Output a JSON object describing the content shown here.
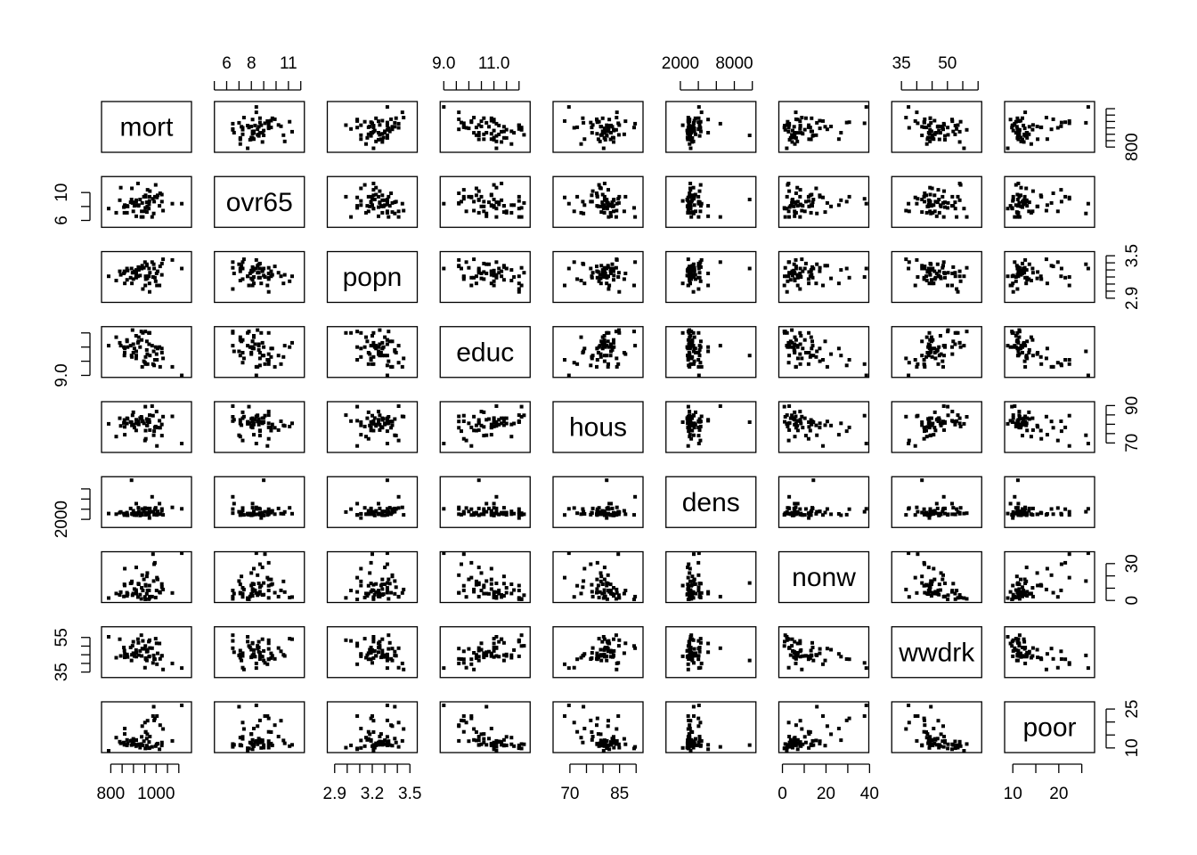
{
  "chart_data": {
    "type": "scatter",
    "matrix": "pairs",
    "variables": [
      "mort",
      "ovr65",
      "popn",
      "educ",
      "hous",
      "dens",
      "nonw",
      "wwdrk",
      "poor"
    ],
    "axes": {
      "mort": {
        "range": [
          775,
          1140
        ],
        "ticks": [
          800,
          1000
        ],
        "minor": [
          800,
          850,
          900,
          950,
          1000,
          1050,
          1100
        ],
        "side": "bottom",
        "labels": [
          "800",
          "1000"
        ]
      },
      "ovr65": {
        "range": [
          5.3,
          12.0
        ],
        "ticks": [
          6,
          8,
          11
        ],
        "minor": [
          5,
          6,
          7,
          8,
          9,
          10,
          11,
          12
        ],
        "side": "top",
        "labels": [
          "6",
          "8",
          "11"
        ]
      },
      "popn": {
        "range": [
          2.87,
          3.53
        ],
        "ticks": [
          2.9,
          3.2,
          3.5
        ],
        "minor": [
          2.9,
          3.0,
          3.1,
          3.2,
          3.3,
          3.4,
          3.5
        ],
        "side": "bottom",
        "labels": [
          "2.9",
          "3.2",
          "3.5"
        ]
      },
      "educ": {
        "range": [
          9.0,
          12.3
        ],
        "ticks": [
          9.0,
          11.0
        ],
        "minor": [
          9.0,
          9.5,
          10.0,
          10.5,
          11.0,
          11.5,
          12.0
        ],
        "side": "top",
        "labels": [
          "9.0",
          "11.0"
        ]
      },
      "hous": {
        "range": [
          66,
          91
        ],
        "ticks": [
          70,
          85
        ],
        "minor": [
          70,
          75,
          80,
          85,
          90
        ],
        "side": "bottom",
        "labels": [
          "70",
          "85"
        ]
      },
      "dens": {
        "range": [
          800,
          10000
        ],
        "ticks": [
          2000,
          8000
        ],
        "minor": [
          2000,
          4000,
          6000,
          8000,
          10000
        ],
        "side": "top",
        "labels": [
          "2000",
          "8000"
        ]
      },
      "nonw": {
        "range": [
          0,
          38
        ],
        "ticks": [
          0,
          20,
          40
        ],
        "minor": [
          0,
          10,
          20,
          30,
          40
        ],
        "side": "bottom",
        "labels": [
          "0",
          "20",
          "40"
        ]
      },
      "wwdrk": {
        "range": [
          33,
          60
        ],
        "ticks": [
          35,
          50
        ],
        "minor": [
          35,
          40,
          45,
          50,
          55,
          60
        ],
        "side": "top",
        "labels": [
          "35",
          "50"
        ]
      },
      "poor": {
        "range": [
          9,
          27
        ],
        "ticks": [
          10,
          20
        ],
        "minor": [
          10,
          15,
          20,
          25
        ],
        "side": "bottom",
        "labels": [
          "10",
          "20"
        ]
      }
    },
    "y_axes": {
      "mort": {
        "ticks": [
          800
        ],
        "minor": [
          800,
          850,
          900,
          950,
          1000,
          1050,
          1100
        ],
        "side": "right",
        "labels": [
          "800"
        ]
      },
      "ovr65": {
        "ticks": [
          6,
          10
        ],
        "minor": [
          6,
          8,
          10
        ],
        "side": "left",
        "labels": [
          "6",
          "10"
        ]
      },
      "popn": {
        "ticks": [
          2.9,
          3.5
        ],
        "minor": [
          2.9,
          3.0,
          3.1,
          3.2,
          3.3,
          3.4,
          3.5
        ],
        "side": "right",
        "labels": [
          "2.9",
          "3.5"
        ]
      },
      "educ": {
        "ticks": [
          9.0
        ],
        "minor": [
          9.0,
          10.0,
          11.0,
          12.0
        ],
        "side": "left",
        "labels": [
          "9.0"
        ]
      },
      "hous": {
        "ticks": [
          70,
          90
        ],
        "minor": [
          70,
          75,
          80,
          85,
          90
        ],
        "side": "right",
        "labels": [
          "70",
          "90"
        ]
      },
      "dens": {
        "ticks": [
          2000
        ],
        "minor": [
          2000,
          4000,
          6000,
          8000
        ],
        "side": "left",
        "labels": [
          "2000"
        ]
      },
      "nonw": {
        "ticks": [
          0,
          30
        ],
        "minor": [
          0,
          10,
          20,
          30
        ],
        "side": "right",
        "labels": [
          "0",
          "30"
        ]
      },
      "wwdrk": {
        "ticks": [
          35,
          55
        ],
        "minor": [
          35,
          40,
          45,
          50,
          55
        ],
        "side": "left",
        "labels": [
          "35",
          "55"
        ]
      },
      "poor": {
        "ticks": [
          10,
          25
        ],
        "minor": [
          10,
          15,
          20,
          25
        ],
        "side": "right",
        "labels": [
          "10",
          "25"
        ]
      }
    },
    "n_points": 60,
    "data": {
      "mort": [
        921.9,
        997.9,
        962.4,
        982.3,
        1071.5,
        1030.4,
        934.7,
        899.5,
        1001.9,
        912.3,
        1017.6,
        1024.9,
        970.5,
        986,
        958.8,
        860.1,
        936.2,
        871.8,
        959.2,
        941.2,
        891.7,
        871.3,
        971.1,
        887.5,
        952.5,
        968.7,
        919.7,
        844.1,
        861.8,
        989.3,
        1006.5,
        861.4,
        929.2,
        857.6,
        961,
        923.2,
        1113.2,
        994.6,
        1015,
        991.3,
        893,
        938.5,
        946.2,
        1025.5,
        874.3,
        953.6,
        839.7,
        911.7,
        790.7,
        899.3,
        904.2,
        950.7,
        972.5,
        912.2,
        967.8,
        823.8,
        1003.5,
        895.7,
        911.8,
        954.4
      ],
      "ovr65": [
        8.1,
        11.1,
        10.4,
        6.5,
        8.4,
        7.4,
        6.5,
        7.3,
        9.4,
        6.6,
        9.9,
        9.7,
        8.8,
        9.1,
        8.6,
        7.1,
        7.3,
        8.1,
        7.2,
        6.5,
        9.0,
        7.1,
        9.4,
        8.6,
        7.8,
        8.3,
        11.3,
        10.7,
        8.2,
        7.0,
        9.6,
        8.0,
        9.0,
        7.9,
        8.0,
        8.2,
        8.4,
        9.4,
        8.1,
        8.7,
        10.6,
        8.5,
        9.4,
        8.7,
        8.0,
        9.6,
        8.9,
        8.2,
        7.7,
        8.6,
        8.1,
        7.3,
        10.2,
        8.9,
        7.7,
        7.1,
        9.3,
        8.5,
        8.7,
        9.4
      ],
      "popn": [
        3.34,
        3.14,
        3.21,
        3.41,
        3.44,
        3.45,
        3.33,
        3.17,
        3.25,
        3.25,
        3.35,
        3.23,
        3.11,
        3.2,
        3.38,
        3.28,
        3.32,
        3.16,
        3.36,
        3.03,
        3.32,
        3.32,
        2.99,
        3.19,
        3.08,
        3.32,
        3.21,
        3.23,
        3.11,
        3.38,
        3.28,
        3.27,
        3.22,
        3.25,
        3.18,
        3.3,
        3.32,
        3.19,
        3.08,
        3.32,
        3.11,
        3.36,
        3.33,
        3.39,
        3.29,
        3.21,
        3.28,
        3.2,
        3.21,
        3.26,
        3.28,
        3.41,
        3.26,
        3.3,
        3.21,
        3.15,
        3.08,
        3.26,
        3.19,
        3.17
      ],
      "educ": [
        11.4,
        11.0,
        9.8,
        11.1,
        9.6,
        10.2,
        12.1,
        10.6,
        10.5,
        10.7,
        9.6,
        10.9,
        12.0,
        9.8,
        10.8,
        10.4,
        11.5,
        11.4,
        11.4,
        12.0,
        10.4,
        11.5,
        12.0,
        11.1,
        12.1,
        11.2,
        11.3,
        11.1,
        10.9,
        10.7,
        10.9,
        10.6,
        11.0,
        11.0,
        10.5,
        11.7,
        9.0,
        10.1,
        11.0,
        9.7,
        10.3,
        9.6,
        10.0,
        10.6,
        11.0,
        10.3,
        11.3,
        11.8,
        11.1,
        11.2,
        10.9,
        9.9,
        10.4,
        10.4,
        12.0,
        11.7,
        10.1,
        12.2,
        10.2,
        9.8
      ],
      "hous": [
        81.5,
        78.8,
        81.6,
        89.7,
        84.2,
        84.1,
        84.0,
        86.4,
        86.8,
        82.4,
        78.1,
        79.9,
        81.1,
        84.6,
        82.8,
        82.3,
        83.2,
        83.2,
        79.5,
        81.7,
        81.1,
        80.4,
        84.9,
        81.2,
        89.4,
        82.4,
        80.5,
        79.1,
        74.4,
        74.1,
        78.2,
        78.6,
        83.3,
        80.7,
        79.3,
        79.9,
        69.7,
        78.3,
        81.9,
        76.3,
        79.4,
        81.5,
        80.5,
        73.9,
        82.9,
        76.6,
        83.2,
        80.4,
        80.2,
        79.8,
        78.2,
        71.3,
        76.9,
        80.5,
        81.3,
        73.4,
        68.4,
        84.8,
        76.7,
        72.2
      ],
      "dens": [
        4281,
        4260,
        3125,
        6441,
        4357,
        2885,
        3213,
        3694,
        3008,
        5087,
        3021,
        3674,
        2271,
        3495,
        4150,
        2831,
        2890,
        3028,
        3340,
        4030,
        9699,
        3328,
        3450,
        4146,
        2887,
        2952,
        3112,
        3456,
        3080,
        3489,
        3563,
        2983,
        2757,
        3154,
        3014,
        3564,
        4071,
        4005,
        5087,
        2923,
        3098,
        4032,
        3555,
        4041,
        2795,
        3316,
        3303,
        3123,
        3145,
        3002,
        2841,
        4226,
        4141,
        2806,
        2974,
        3029,
        2869,
        3004,
        3237,
        3209
      ],
      "nonw": [
        13.7,
        2.4,
        8.2,
        3.1,
        6.1,
        8.9,
        1.3,
        5.6,
        8.1,
        5.6,
        6.3,
        13.4,
        12.1,
        37.7,
        5.4,
        13.1,
        10.3,
        3.8,
        19.6,
        8.1,
        14.2,
        6.3,
        2.1,
        13.9,
        0.9,
        8.2,
        2.8,
        6.8,
        25.9,
        15.8,
        17.1,
        12.2,
        4.7,
        3.3,
        22.3,
        13.2,
        38.5,
        30.7,
        7.0,
        29.5,
        15.5,
        20.6,
        17.2,
        10.8,
        5.2,
        12.8,
        4.5,
        8.5,
        2.0,
        5.6,
        9.3,
        2.9,
        3.1,
        26.9,
        1.0,
        5.7,
        18.6,
        4.3,
        7.1,
        12.0
      ],
      "wwdrk": [
        51.9,
        54.3,
        47.0,
        48.8,
        40.0,
        36.5,
        56.3,
        45.9,
        51.6,
        46.5,
        42.6,
        44.4,
        44.1,
        40.3,
        46.8,
        47.4,
        44.3,
        44.8,
        41.7,
        53.0,
        41.7,
        45.2,
        53.4,
        49.2,
        50.1,
        43.9,
        54.0,
        44.3,
        45.5,
        44.6,
        45.8,
        43.5,
        47.2,
        49.2,
        47.9,
        44.8,
        37.3,
        42.4,
        51.5,
        42.5,
        45.0,
        48.6,
        48.4,
        44.4,
        43.7,
        43.1,
        54.0,
        47.7,
        55.4,
        52.5,
        44.2,
        37.5,
        48.9,
        43.9,
        52.6,
        43.3,
        39.5,
        50.2,
        46.1,
        42.4
      ],
      "poor": [
        11.1,
        10.7,
        20.5,
        10.4,
        12.7,
        17.3,
        11.5,
        13.5,
        11.4,
        11.2,
        18.8,
        11.0,
        10.0,
        22.3,
        13.6,
        11.2,
        14.3,
        13.1,
        10.9,
        11.0,
        11.1,
        11.0,
        10.1,
        12.7,
        9.8,
        12.3,
        11.2,
        11.8,
        17.5,
        25.9,
        11.7,
        15.4,
        10.1,
        12.1,
        15.3,
        11.4,
        26.4,
        21.4,
        9.5,
        20.6,
        12.9,
        18.4,
        12.6,
        12.1,
        11.8,
        16.1,
        12.4,
        10.7,
        8.9,
        12.5,
        11.4,
        19.8,
        14.4,
        13.0,
        9.9,
        14.0,
        22.3,
        11.4,
        13.1,
        16.2
      ]
    }
  }
}
